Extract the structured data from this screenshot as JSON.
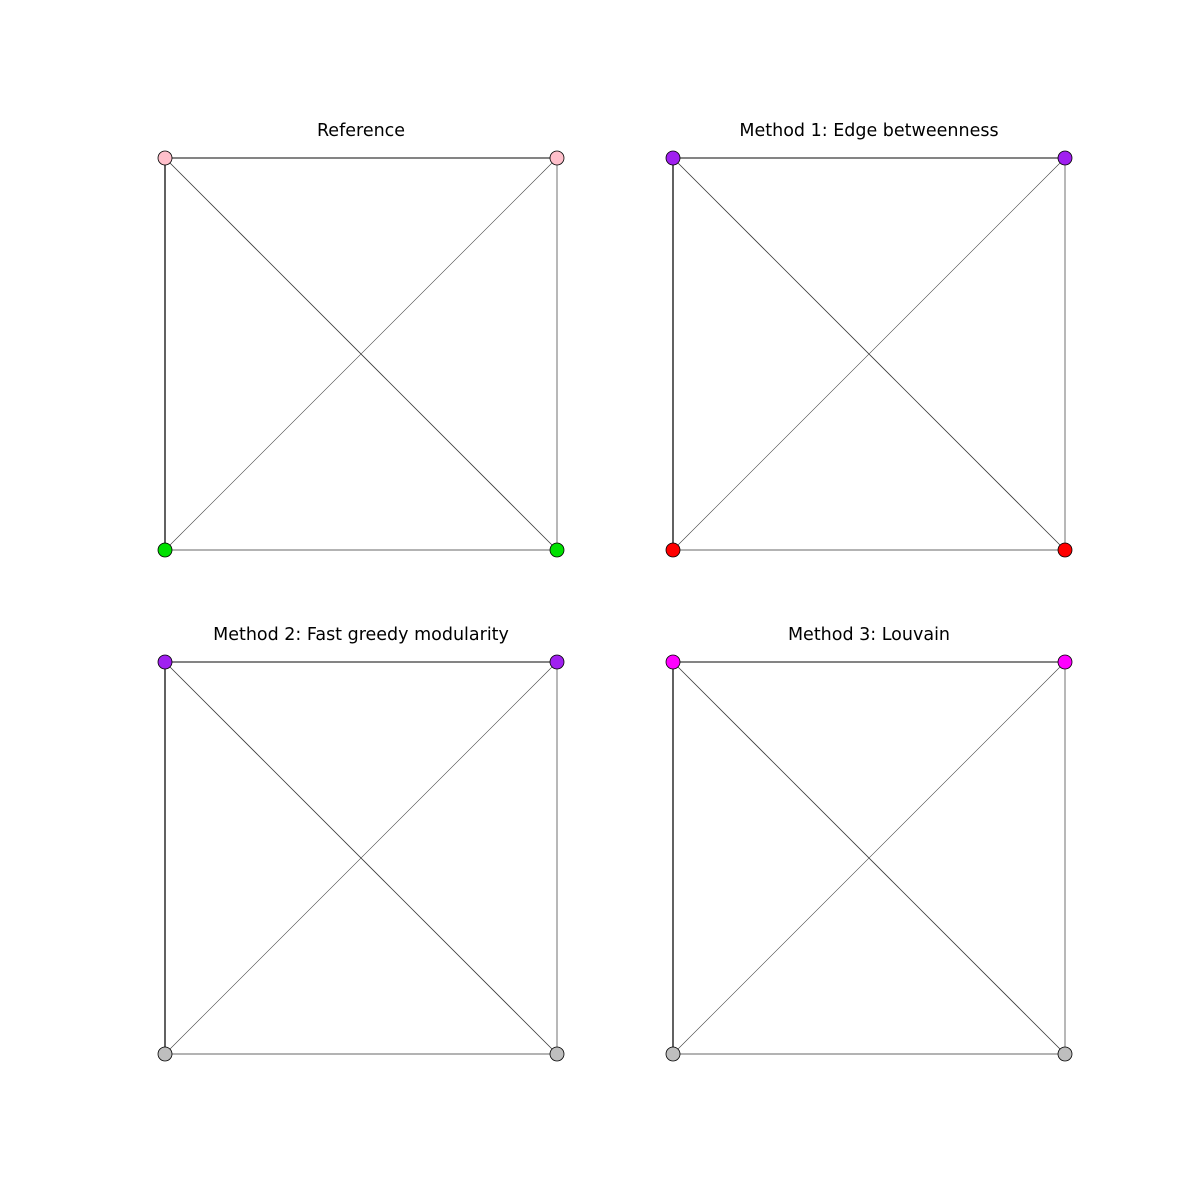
{
  "colors": {
    "edge_dark": "#3a3a3a",
    "edge_light": "#9a9a9a",
    "node_outline": "#000000"
  },
  "panels": [
    {
      "title": "Reference",
      "node_colors": [
        "#ffc0cb",
        "#ffc0cb",
        "#00e000",
        "#00e000"
      ]
    },
    {
      "title": "Method 1: Edge betweenness",
      "node_colors": [
        "#a020f0",
        "#a020f0",
        "#ff0000",
        "#ff0000"
      ]
    },
    {
      "title": "Method 2: Fast greedy modularity",
      "node_colors": [
        "#a020f0",
        "#a020f0",
        "#bebebe",
        "#bebebe"
      ]
    },
    {
      "title": "Method 3: Louvain",
      "node_colors": [
        "#ff00ff",
        "#ff00ff",
        "#bebebe",
        "#bebebe"
      ]
    }
  ]
}
